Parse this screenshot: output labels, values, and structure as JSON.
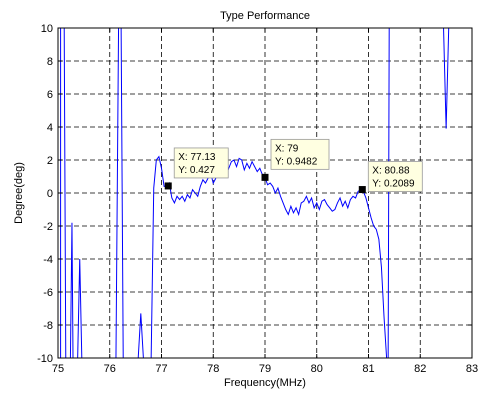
{
  "chart_data": {
    "type": "line",
    "title": "Type Performance",
    "xlabel": "Frequency(MHz)",
    "ylabel": "Degree(deg)",
    "xlim": [
      75,
      83
    ],
    "ylim": [
      -10,
      10
    ],
    "xticks": [
      75,
      76,
      77,
      78,
      79,
      80,
      81,
      82,
      83
    ],
    "yticks": [
      -10,
      -8,
      -6,
      -4,
      -2,
      0,
      2,
      4,
      6,
      8,
      10
    ],
    "grid": true,
    "line_color": "#0000ff",
    "series": [
      {
        "x": [
          75.05,
          75.05,
          75.12,
          75.15,
          75.19,
          75.21,
          75.24,
          75.27,
          75.29,
          75.34,
          75.38,
          75.42,
          75.46,
          75.52,
          75.6,
          75.7,
          75.8,
          75.9,
          76.0,
          76.05,
          76.07,
          76.1,
          76.12,
          76.17,
          76.22,
          76.26,
          76.3,
          76.35,
          76.4,
          76.45,
          76.5,
          76.55,
          76.6,
          76.65,
          76.7,
          76.75,
          76.8,
          76.85,
          76.9,
          76.95,
          77.0,
          77.05,
          77.1,
          77.15,
          77.2,
          77.25,
          77.3,
          77.35,
          77.4,
          77.45,
          77.5,
          77.55,
          77.6,
          77.65,
          77.7,
          77.75,
          77.8,
          77.85,
          77.9,
          77.95,
          78.0,
          78.05,
          78.1,
          78.15,
          78.2,
          78.25,
          78.3,
          78.35,
          78.4,
          78.45,
          78.5,
          78.55,
          78.6,
          78.65,
          78.7,
          78.75,
          78.8,
          78.85,
          78.9,
          78.95,
          79.0,
          79.05,
          79.1,
          79.15,
          79.2,
          79.25,
          79.3,
          79.35,
          79.4,
          79.45,
          79.5,
          79.55,
          79.6,
          79.65,
          79.7,
          79.75,
          79.8,
          79.85,
          79.9,
          79.95,
          80.0,
          80.05,
          80.1,
          80.15,
          80.2,
          80.25,
          80.3,
          80.35,
          80.4,
          80.45,
          80.5,
          80.55,
          80.6,
          80.65,
          80.7,
          80.75,
          80.8,
          80.85,
          80.88,
          80.9,
          80.95,
          81.0,
          81.05,
          81.1,
          81.15,
          81.2,
          81.25,
          81.3,
          81.35,
          81.38,
          81.4,
          81.45,
          81.5,
          81.55,
          81.6,
          81.65,
          81.7,
          81.75,
          81.8,
          81.85,
          81.9,
          81.95,
          82.0,
          82.05,
          82.1,
          82.15,
          82.2,
          82.25,
          82.3,
          82.35,
          82.4,
          82.45,
          82.5,
          82.55,
          82.6,
          82.65,
          82.7,
          82.75,
          82.8,
          82.85,
          82.9,
          82.95,
          83.0
        ],
        "y": [
          -10,
          10,
          10,
          -10,
          -10,
          -10,
          -10,
          -1.8,
          -10,
          -10,
          -10,
          -4.0,
          -10,
          -10,
          -10,
          -10,
          -10,
          -10,
          -10,
          -10,
          -10,
          -10,
          -10,
          10,
          10,
          -10,
          -10,
          -10,
          -10,
          -10,
          -10,
          -10,
          -7.3,
          -10,
          -10,
          -10,
          -10,
          0.3,
          2.0,
          2.2,
          1.5,
          0.4,
          0.4,
          0.6,
          -0.3,
          -0.6,
          -0.2,
          -0.4,
          -0.2,
          -0.5,
          -0.1,
          -0.3,
          0.2,
          0.0,
          -0.2,
          0.4,
          0.8,
          0.6,
          0.9,
          1.2,
          0.6,
          0.9,
          1.6,
          1.8,
          1.3,
          1.1,
          1.5,
          1.9,
          2.0,
          1.6,
          2.1,
          2.0,
          1.4,
          1.8,
          1.5,
          1.9,
          1.6,
          1.3,
          1.5,
          1.1,
          0.95,
          0.5,
          0.6,
          0.4,
          0.0,
          0.3,
          -0.2,
          -0.6,
          -1.0,
          -1.3,
          -0.8,
          -1.2,
          -0.9,
          -1.3,
          -0.6,
          -0.5,
          -0.2,
          -0.6,
          -0.3,
          -0.9,
          -0.6,
          -1.0,
          -0.5,
          -0.4,
          -0.7,
          -0.9,
          -1.1,
          -1.0,
          -0.6,
          -0.3,
          -0.8,
          -0.5,
          -0.9,
          -0.4,
          -0.2,
          -0.3,
          0.1,
          0.2,
          0.21,
          0.1,
          -0.3,
          -0.9,
          -1.5,
          -2.0,
          -2.2,
          -2.8,
          -4.5,
          -7.5,
          -10,
          -10,
          10,
          10,
          10,
          10,
          10,
          10,
          10,
          10,
          10,
          10,
          10,
          10,
          10,
          10,
          10,
          10,
          10,
          10,
          10,
          10,
          10,
          10,
          3.9,
          10,
          10,
          10,
          10,
          10,
          10,
          10,
          10,
          10,
          10
        ]
      }
    ],
    "datatips": [
      {
        "x": 77.13,
        "y": 0.427,
        "x_text": "X: 77.13",
        "y_text": "Y: 0.427"
      },
      {
        "x": 79,
        "y": 0.9482,
        "x_text": "X: 79",
        "y_text": "Y: 0.9482"
      },
      {
        "x": 80.88,
        "y": 0.2089,
        "x_text": "X: 80.88",
        "y_text": "Y: 0.2089"
      }
    ]
  }
}
